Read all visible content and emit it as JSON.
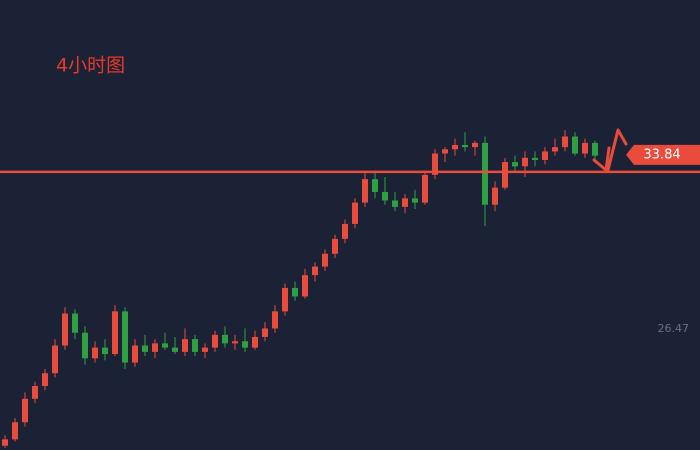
{
  "chart_data": {
    "type": "candlestick",
    "title": "4小时图",
    "up_color": "#e94b3c",
    "down_color": "#2ea043",
    "price_line": 33.84,
    "price_line_color": "#e94b3c",
    "ylim": [
      20.8,
      41.9
    ],
    "yticks": [
      26.47
    ],
    "ohlc": [
      [
        21.0,
        21.5,
        20.9,
        21.3
      ],
      [
        21.3,
        22.3,
        21.2,
        22.1
      ],
      [
        22.1,
        23.5,
        21.9,
        23.2
      ],
      [
        23.2,
        24.0,
        23.0,
        23.8
      ],
      [
        23.8,
        24.6,
        23.6,
        24.4
      ],
      [
        24.4,
        26.0,
        24.2,
        25.7
      ],
      [
        25.7,
        27.5,
        25.5,
        27.2
      ],
      [
        27.2,
        27.4,
        26.0,
        26.3
      ],
      [
        26.3,
        26.6,
        24.8,
        25.1
      ],
      [
        25.1,
        25.9,
        24.9,
        25.6
      ],
      [
        25.6,
        26.0,
        25.0,
        25.3
      ],
      [
        25.3,
        27.6,
        25.2,
        27.3
      ],
      [
        27.3,
        27.5,
        24.6,
        24.9
      ],
      [
        24.9,
        26.0,
        24.7,
        25.7
      ],
      [
        25.7,
        26.2,
        25.2,
        25.4
      ],
      [
        25.4,
        26.0,
        25.1,
        25.8
      ],
      [
        25.8,
        26.3,
        25.5,
        25.6
      ],
      [
        25.6,
        26.1,
        25.3,
        25.4
      ],
      [
        25.4,
        26.5,
        25.2,
        26.0
      ],
      [
        26.0,
        26.2,
        25.2,
        25.4
      ],
      [
        25.4,
        25.8,
        25.1,
        25.6
      ],
      [
        25.6,
        26.4,
        25.4,
        26.2
      ],
      [
        26.2,
        26.6,
        25.6,
        25.8
      ],
      [
        25.8,
        26.2,
        25.5,
        25.9
      ],
      [
        25.9,
        26.5,
        25.4,
        25.6
      ],
      [
        25.6,
        26.4,
        25.5,
        26.1
      ],
      [
        26.1,
        26.8,
        25.9,
        26.5
      ],
      [
        26.5,
        27.6,
        26.3,
        27.3
      ],
      [
        27.3,
        28.6,
        27.1,
        28.4
      ],
      [
        28.4,
        28.7,
        27.8,
        28.0
      ],
      [
        28.0,
        29.3,
        27.9,
        29.0
      ],
      [
        29.0,
        29.6,
        28.7,
        29.4
      ],
      [
        29.4,
        30.2,
        29.2,
        30.0
      ],
      [
        30.0,
        30.9,
        29.8,
        30.7
      ],
      [
        30.7,
        31.6,
        30.5,
        31.4
      ],
      [
        31.4,
        32.6,
        31.2,
        32.4
      ],
      [
        32.4,
        33.8,
        32.2,
        33.5
      ],
      [
        33.5,
        33.9,
        32.6,
        32.9
      ],
      [
        32.9,
        33.6,
        32.3,
        32.5
      ],
      [
        32.5,
        32.9,
        32.0,
        32.2
      ],
      [
        32.2,
        32.8,
        31.9,
        32.6
      ],
      [
        32.6,
        33.0,
        32.1,
        32.4
      ],
      [
        32.4,
        33.9,
        32.3,
        33.7
      ],
      [
        33.7,
        34.9,
        33.5,
        34.7
      ],
      [
        34.7,
        35.0,
        34.3,
        34.9
      ],
      [
        34.9,
        35.4,
        34.6,
        35.1
      ],
      [
        35.1,
        35.7,
        34.8,
        35.0
      ],
      [
        35.0,
        35.3,
        34.6,
        35.2
      ],
      [
        35.2,
        35.5,
        31.3,
        32.3
      ],
      [
        32.3,
        33.4,
        32.0,
        33.1
      ],
      [
        33.1,
        34.5,
        33.0,
        34.3
      ],
      [
        34.3,
        34.6,
        33.9,
        34.1
      ],
      [
        34.1,
        34.8,
        33.6,
        34.5
      ],
      [
        34.5,
        34.8,
        34.1,
        34.4
      ],
      [
        34.4,
        35.0,
        34.2,
        34.8
      ],
      [
        34.8,
        35.4,
        34.6,
        35.0
      ],
      [
        35.0,
        35.8,
        34.8,
        35.5
      ],
      [
        35.5,
        35.7,
        34.6,
        34.7
      ],
      [
        34.7,
        35.4,
        34.5,
        35.2
      ],
      [
        35.2,
        35.3,
        34.4,
        34.6
      ]
    ]
  }
}
